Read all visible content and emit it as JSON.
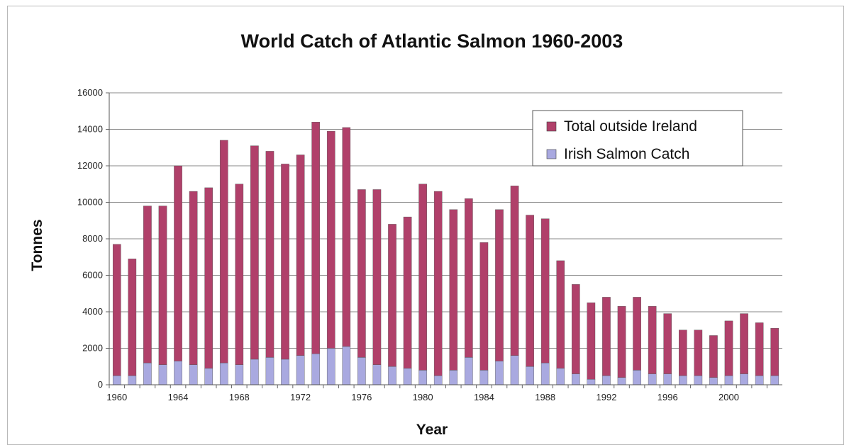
{
  "chart_data": {
    "type": "bar",
    "stacked": true,
    "title": "World Catch of Atlantic Salmon 1960-2003",
    "xlabel": "Year",
    "ylabel": "Tonnes",
    "ylim": [
      0,
      16000
    ],
    "y_ticks": [
      "0",
      "2000",
      "4000",
      "6000",
      "8000",
      "10000",
      "12000",
      "14000",
      "16000"
    ],
    "x_tick_labels": [
      "1960",
      "1964",
      "1968",
      "1972",
      "1976",
      "1980",
      "1984",
      "1988",
      "1992",
      "1996",
      "2000"
    ],
    "grid": true,
    "legend_position": "top-right",
    "categories": [
      1960,
      1961,
      1962,
      1963,
      1964,
      1965,
      1966,
      1967,
      1968,
      1969,
      1970,
      1971,
      1972,
      1973,
      1974,
      1975,
      1976,
      1977,
      1978,
      1979,
      1980,
      1981,
      1982,
      1983,
      1984,
      1985,
      1986,
      1987,
      1988,
      1989,
      1990,
      1991,
      1992,
      1993,
      1994,
      1995,
      1996,
      1997,
      1998,
      1999,
      2000,
      2001,
      2002,
      2003
    ],
    "series": [
      {
        "name": "Irish Salmon Catch",
        "color": "#a9a9e0",
        "values": [
          500,
          500,
          1200,
          1100,
          1300,
          1100,
          900,
          1200,
          1100,
          1400,
          1500,
          1400,
          1600,
          1700,
          2000,
          2100,
          1500,
          1100,
          1000,
          900,
          800,
          500,
          800,
          1500,
          800,
          1300,
          1600,
          1000,
          1200,
          900,
          600,
          300,
          500,
          400,
          800,
          600,
          600,
          500,
          500,
          400,
          500,
          600,
          500,
          500
        ]
      },
      {
        "name": "Total outside Ireland",
        "color": "#b0406a",
        "values": [
          7200,
          6400,
          8600,
          8700,
          10700,
          9500,
          9900,
          12200,
          9900,
          11700,
          11300,
          10700,
          11000,
          12700,
          11900,
          12000,
          9200,
          9600,
          7800,
          8300,
          10200,
          10100,
          8800,
          8700,
          7000,
          8300,
          9300,
          8300,
          7900,
          5900,
          4900,
          4200,
          4300,
          3900,
          4000,
          3700,
          3300,
          2500,
          2500,
          2300,
          3000,
          3300,
          2900,
          2600
        ]
      }
    ]
  }
}
